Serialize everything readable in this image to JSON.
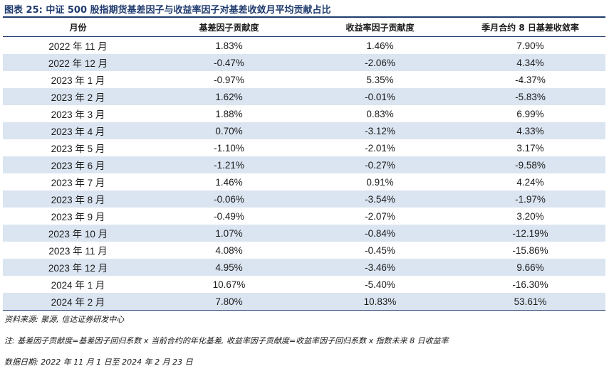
{
  "title": "图表 25:  中证 500 股指期货基差因子与收益率因子对基差收敛月平均贡献占比",
  "headers": [
    "月份",
    "基差因子贡献度",
    "收益率因子贡献度",
    "季月合约 8 日基差收敛率"
  ],
  "rows": [
    [
      "2022 年 11 月",
      "1.83%",
      "1.46%",
      "7.90%"
    ],
    [
      "2022 年 12 月",
      "-0.47%",
      "-2.06%",
      "4.34%"
    ],
    [
      "2023 年 1 月",
      "-0.97%",
      "5.35%",
      "-4.37%"
    ],
    [
      "2023 年 2 月",
      "1.62%",
      "-0.01%",
      "-5.83%"
    ],
    [
      "2023 年 3 月",
      "1.88%",
      "0.83%",
      "6.99%"
    ],
    [
      "2023 年 4 月",
      "0.70%",
      "-3.12%",
      "4.33%"
    ],
    [
      "2023 年 5 月",
      "-1.10%",
      "-2.01%",
      "3.17%"
    ],
    [
      "2023 年 6 月",
      "-1.21%",
      "-0.27%",
      "-9.58%"
    ],
    [
      "2023 年 7 月",
      "1.46%",
      "0.91%",
      "4.24%"
    ],
    [
      "2023 年 8 月",
      "-0.06%",
      "-3.54%",
      "-1.97%"
    ],
    [
      "2023 年 9 月",
      "-0.49%",
      "-2.07%",
      "3.20%"
    ],
    [
      "2023 年 10 月",
      "1.07%",
      "-0.84%",
      "-12.19%"
    ],
    [
      "2023 年 11 月",
      "4.08%",
      "-0.45%",
      "-15.86%"
    ],
    [
      "2023 年 12 月",
      "4.95%",
      "-3.46%",
      "9.66%"
    ],
    [
      "2024 年 1 月",
      "10.67%",
      "-5.40%",
      "-16.30%"
    ],
    [
      "2024 年 2 月",
      "7.80%",
      "10.83%",
      "53.61%"
    ]
  ],
  "source": "资料来源:  聚源, 信达证券研发中心",
  "note": "注:  基差因子贡献度=基差因子回归系数 x 当前合约的年化基差, 收益率因子贡献度=收益率因子回归系数 x 指数未来 8 日收益率",
  "date_range": "数据日期:  2022 年 11 月 1 日至 2024 年 2 月 23 日"
}
